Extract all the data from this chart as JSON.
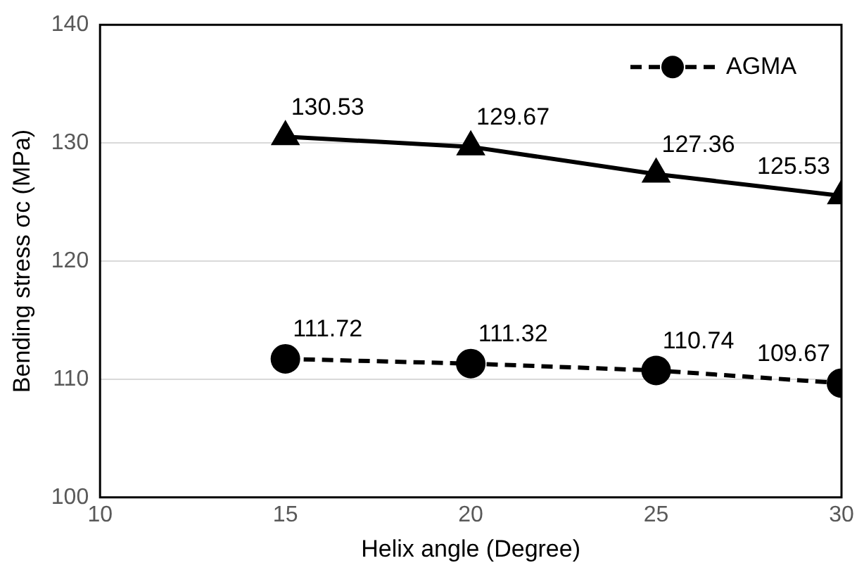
{
  "chart_data": {
    "type": "line",
    "xlabel": "Helix angle (Degree)",
    "ylabel": "Bending stress σc (MPa)",
    "x": [
      15,
      20,
      25,
      30
    ],
    "series": [
      {
        "color": "#000000",
        "values": [
          130.53,
          129.67,
          127.36,
          125.53
        ],
        "marker": "triangle",
        "line_style": "solid"
      },
      {
        "name": "AGMA",
        "color": "#000000",
        "values": [
          111.72,
          111.32,
          110.74,
          109.67
        ],
        "marker": "circle",
        "line_style": "dashed"
      }
    ],
    "xlim": [
      10,
      30
    ],
    "xticks": [
      10,
      15,
      20,
      25,
      30
    ],
    "ylim": [
      100,
      140
    ],
    "yticks": [
      100,
      110,
      120,
      130,
      140
    ],
    "grid": "y",
    "legend": "top right",
    "data_labels": true
  }
}
